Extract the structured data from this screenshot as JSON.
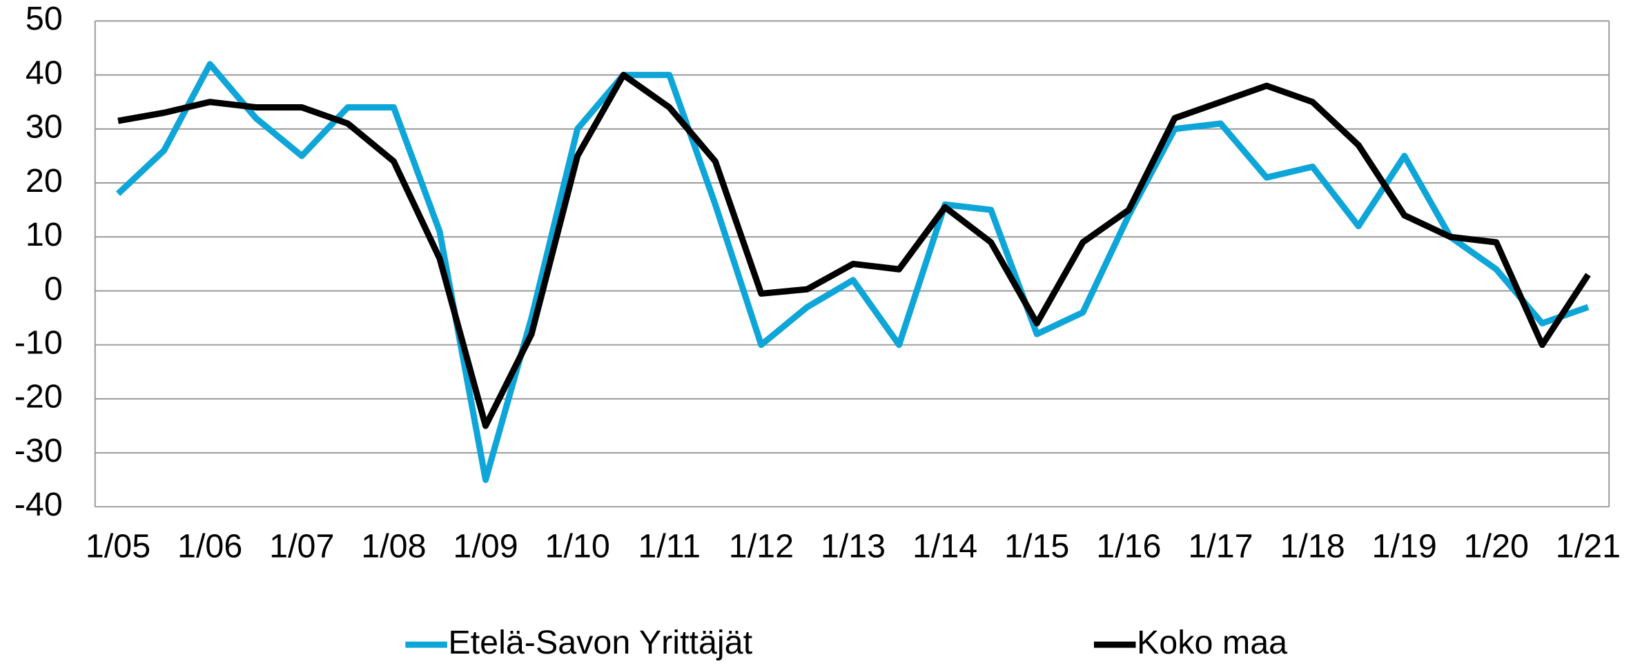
{
  "chart_data": {
    "type": "line",
    "categories": [
      "1/05",
      null,
      "1/06",
      null,
      "1/07",
      null,
      "1/08",
      null,
      "1/09",
      null,
      "1/10",
      null,
      "1/11",
      null,
      "1/12",
      null,
      "1/13",
      null,
      "1/14",
      null,
      "1/15",
      null,
      "1/16",
      null,
      "1/17",
      null,
      "1/18",
      null,
      "1/19",
      null,
      "1/20",
      null,
      "1/21"
    ],
    "series": [
      {
        "name": "Etelä-Savon Yrittäjät",
        "color": "#0ea5d8",
        "values": [
          18,
          26,
          42,
          32,
          25,
          34,
          34,
          11,
          -35,
          -5,
          30,
          40,
          40,
          16,
          -10,
          -3,
          2,
          -10,
          16,
          15,
          -8,
          -4,
          14,
          30,
          31,
          21,
          23,
          12,
          25,
          10,
          4,
          -6,
          -3
        ]
      },
      {
        "name": "Koko maa",
        "color": "#000000",
        "values": [
          31.5,
          33,
          35,
          34,
          34,
          31,
          24,
          6,
          -25,
          -8,
          25,
          40,
          34,
          24,
          -0.5,
          0.3,
          5,
          4,
          15.5,
          9,
          -6,
          9,
          15,
          32,
          35,
          38,
          35,
          27,
          14,
          10,
          9,
          -10,
          3
        ]
      }
    ],
    "ylim": [
      -40,
      50
    ],
    "yticks": [
      -40,
      -30,
      -20,
      -10,
      0,
      10,
      20,
      30,
      40,
      50
    ],
    "grid": true,
    "legend": "bottom"
  }
}
